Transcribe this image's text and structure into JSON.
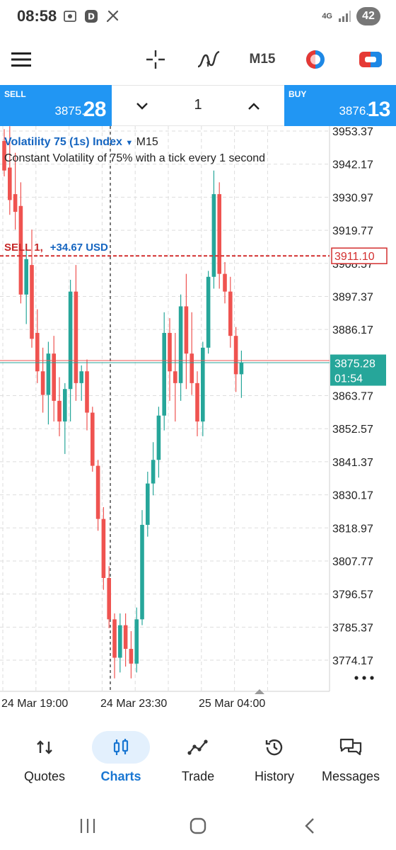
{
  "status_bar": {
    "time": "08:58",
    "network": "4G",
    "battery": "42"
  },
  "toolbar": {
    "timeframe": "M15",
    "icons": [
      "menu-icon",
      "crosshair-icon",
      "indicators-icon",
      "timeframe-label",
      "one-click-trading-icon",
      "trade-toggle-icon"
    ]
  },
  "trade_panel": {
    "sell_label": "SELL",
    "sell_price_prefix": "3875.",
    "sell_price_big": "28",
    "buy_label": "BUY",
    "buy_price_prefix": "3876.",
    "buy_price_big": "13",
    "volume": "1"
  },
  "chart": {
    "symbol": "Volatility 75 (1s) Index",
    "timeframe": "M15",
    "description": "Constant Volatility of 75% with a tick every 1 second",
    "position_label": "SELL 1,",
    "position_profit": "+34.67 USD",
    "position_line_price": "3911.10",
    "bid_line_price": "3875.28",
    "bid_countdown": "01:54",
    "colors": {
      "bull": "#26a69a",
      "bear": "#ef5350",
      "position_line": "#d32f2f",
      "bid_line": "#26a69a",
      "ask_line": "#ef5350",
      "grid": "#dddddd"
    }
  },
  "chart_data": {
    "type": "candlestick",
    "ylim": [
      3765,
      3958
    ],
    "y_ticks": [
      "3953.37",
      "3942.17",
      "3930.97",
      "3919.77",
      "3908.57",
      "3897.37",
      "3886.17",
      "3863.77",
      "3852.57",
      "3841.37",
      "3830.17",
      "3818.97",
      "3807.77",
      "3796.57",
      "3785.37",
      "3774.17"
    ],
    "x_ticks": [
      "24 Mar 19:00",
      "24 Mar 23:30",
      "25 Mar 04:00"
    ],
    "ohlc": [
      [
        3950,
        3954,
        3938,
        3940
      ],
      [
        3941,
        3955,
        3925,
        3930
      ],
      [
        3932,
        3946,
        3920,
        3926
      ],
      [
        3928,
        3936,
        3895,
        3898
      ],
      [
        3898,
        3915,
        3888,
        3910
      ],
      [
        3908,
        3920,
        3880,
        3883
      ],
      [
        3885,
        3893,
        3868,
        3872
      ],
      [
        3872,
        3880,
        3858,
        3864
      ],
      [
        3864,
        3882,
        3854,
        3878
      ],
      [
        3878,
        3884,
        3855,
        3862
      ],
      [
        3862,
        3870,
        3850,
        3855
      ],
      [
        3855,
        3868,
        3844,
        3866
      ],
      [
        3866,
        3903,
        3855,
        3899
      ],
      [
        3899,
        3908,
        3862,
        3868
      ],
      [
        3868,
        3874,
        3862,
        3872
      ],
      [
        3872,
        3876,
        3852,
        3858
      ],
      [
        3858,
        3860,
        3838,
        3840
      ],
      [
        3840,
        3842,
        3818,
        3822
      ],
      [
        3822,
        3826,
        3798,
        3802
      ],
      [
        3802,
        3806,
        3785,
        3788
      ],
      [
        3788,
        3790,
        3768,
        3775
      ],
      [
        3775,
        3790,
        3770,
        3786
      ],
      [
        3786,
        3790,
        3772,
        3778
      ],
      [
        3778,
        3784,
        3768,
        3773
      ],
      [
        3773,
        3792,
        3770,
        3788
      ],
      [
        3788,
        3825,
        3786,
        3820
      ],
      [
        3820,
        3838,
        3816,
        3834
      ],
      [
        3834,
        3848,
        3830,
        3842
      ],
      [
        3842,
        3860,
        3836,
        3857
      ],
      [
        3857,
        3892,
        3852,
        3885
      ],
      [
        3885,
        3890,
        3862,
        3872
      ],
      [
        3872,
        3885,
        3855,
        3868
      ],
      [
        3868,
        3898,
        3862,
        3894
      ],
      [
        3894,
        3905,
        3866,
        3878
      ],
      [
        3878,
        3892,
        3864,
        3868
      ],
      [
        3868,
        3872,
        3850,
        3855
      ],
      [
        3855,
        3882,
        3850,
        3880
      ],
      [
        3880,
        3906,
        3878,
        3904
      ],
      [
        3904,
        3940,
        3900,
        3932
      ],
      [
        3932,
        3936,
        3900,
        3905
      ],
      [
        3905,
        3909,
        3895,
        3899
      ],
      [
        3899,
        3904,
        3880,
        3884
      ],
      [
        3884,
        3887,
        3865,
        3871
      ],
      [
        3871,
        3879,
        3863,
        3875
      ]
    ]
  },
  "bottom_nav": [
    {
      "label": "Quotes",
      "icon": "quotes-icon",
      "active": false
    },
    {
      "label": "Charts",
      "icon": "charts-icon",
      "active": true
    },
    {
      "label": "Trade",
      "icon": "trade-icon",
      "active": false
    },
    {
      "label": "History",
      "icon": "history-icon",
      "active": false
    },
    {
      "label": "Messages",
      "icon": "messages-icon",
      "active": false
    }
  ]
}
